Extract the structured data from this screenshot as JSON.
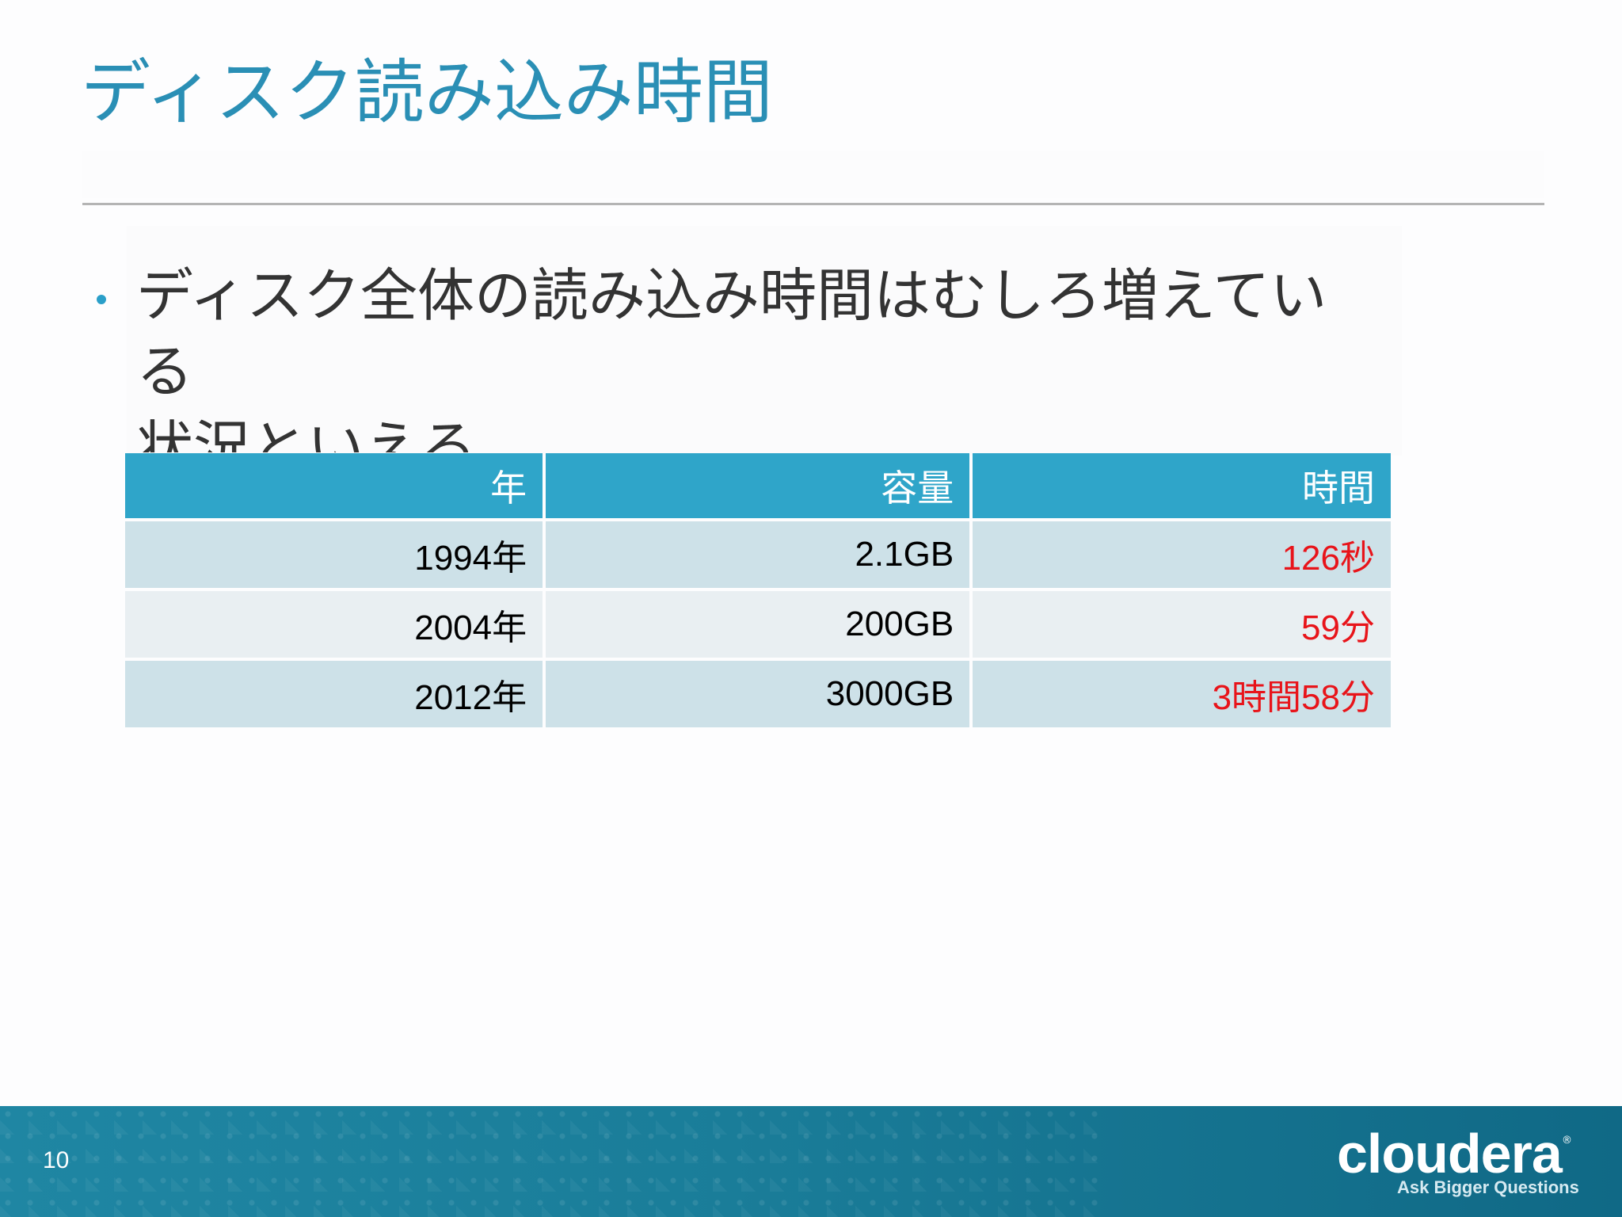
{
  "slide": {
    "title": "ディスク読み込み時間",
    "bullet": {
      "line1": "ディスク全体の読み込み時間はむしろ増えてい",
      "line2": "る",
      "line3": "状況といえる"
    },
    "table": {
      "headers": [
        "年",
        "容量",
        "時間"
      ],
      "rows": [
        [
          "1994年",
          "2.1GB",
          "126秒"
        ],
        [
          "2004年",
          "200GB",
          "59分"
        ],
        [
          "2012年",
          "3000GB",
          "3時間58分"
        ]
      ]
    },
    "footer": {
      "page_number": "10",
      "logo_text": "cloudera",
      "logo_mark": "®",
      "tagline": "Ask Bigger Questions"
    },
    "colors": {
      "title": "#2a8fb5",
      "header_bg": "#2fa5c9",
      "row_odd": "#cde1e8",
      "row_even": "#e9eff2",
      "time_text": "#e8141a",
      "footer": "#1a7d99"
    }
  }
}
